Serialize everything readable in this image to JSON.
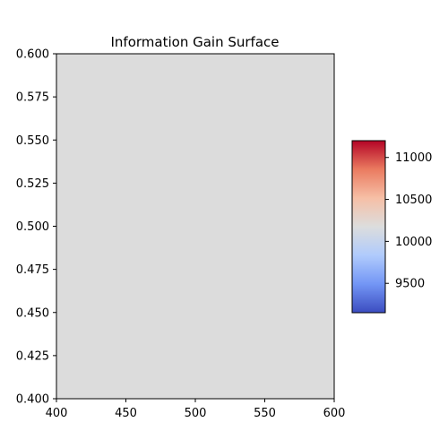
{
  "chart_data": {
    "type": "heatmap",
    "title": "Information Gain Surface",
    "xlabel": "",
    "ylabel": "",
    "xlim": [
      400,
      600
    ],
    "ylim": [
      0.4,
      0.6
    ],
    "x_ticks": [
      400,
      450,
      500,
      550,
      600
    ],
    "x_tick_labels": [
      "400",
      "450",
      "500",
      "550",
      "600"
    ],
    "y_ticks": [
      0.4,
      0.425,
      0.45,
      0.475,
      0.5,
      0.525,
      0.55,
      0.575,
      0.6
    ],
    "y_tick_labels": [
      "0.400",
      "0.425",
      "0.450",
      "0.475",
      "0.500",
      "0.525",
      "0.550",
      "0.575",
      "0.600"
    ],
    "surface_value": 10000,
    "surface_color": "#dcdcdc",
    "colormap": "coolwarm",
    "colormap_stops": [
      "#3b4cc0",
      "#7396f5",
      "#b0cbfc",
      "#dcdddd",
      "#f6bfa6",
      "#ea7b60",
      "#b40426"
    ],
    "colorbar": {
      "range": [
        9150,
        11200
      ],
      "ticks": [
        9500,
        10000,
        10500,
        11000
      ],
      "tick_labels": [
        "9500",
        "10000",
        "10500",
        "11000"
      ]
    },
    "grid": false,
    "legend": "none"
  }
}
